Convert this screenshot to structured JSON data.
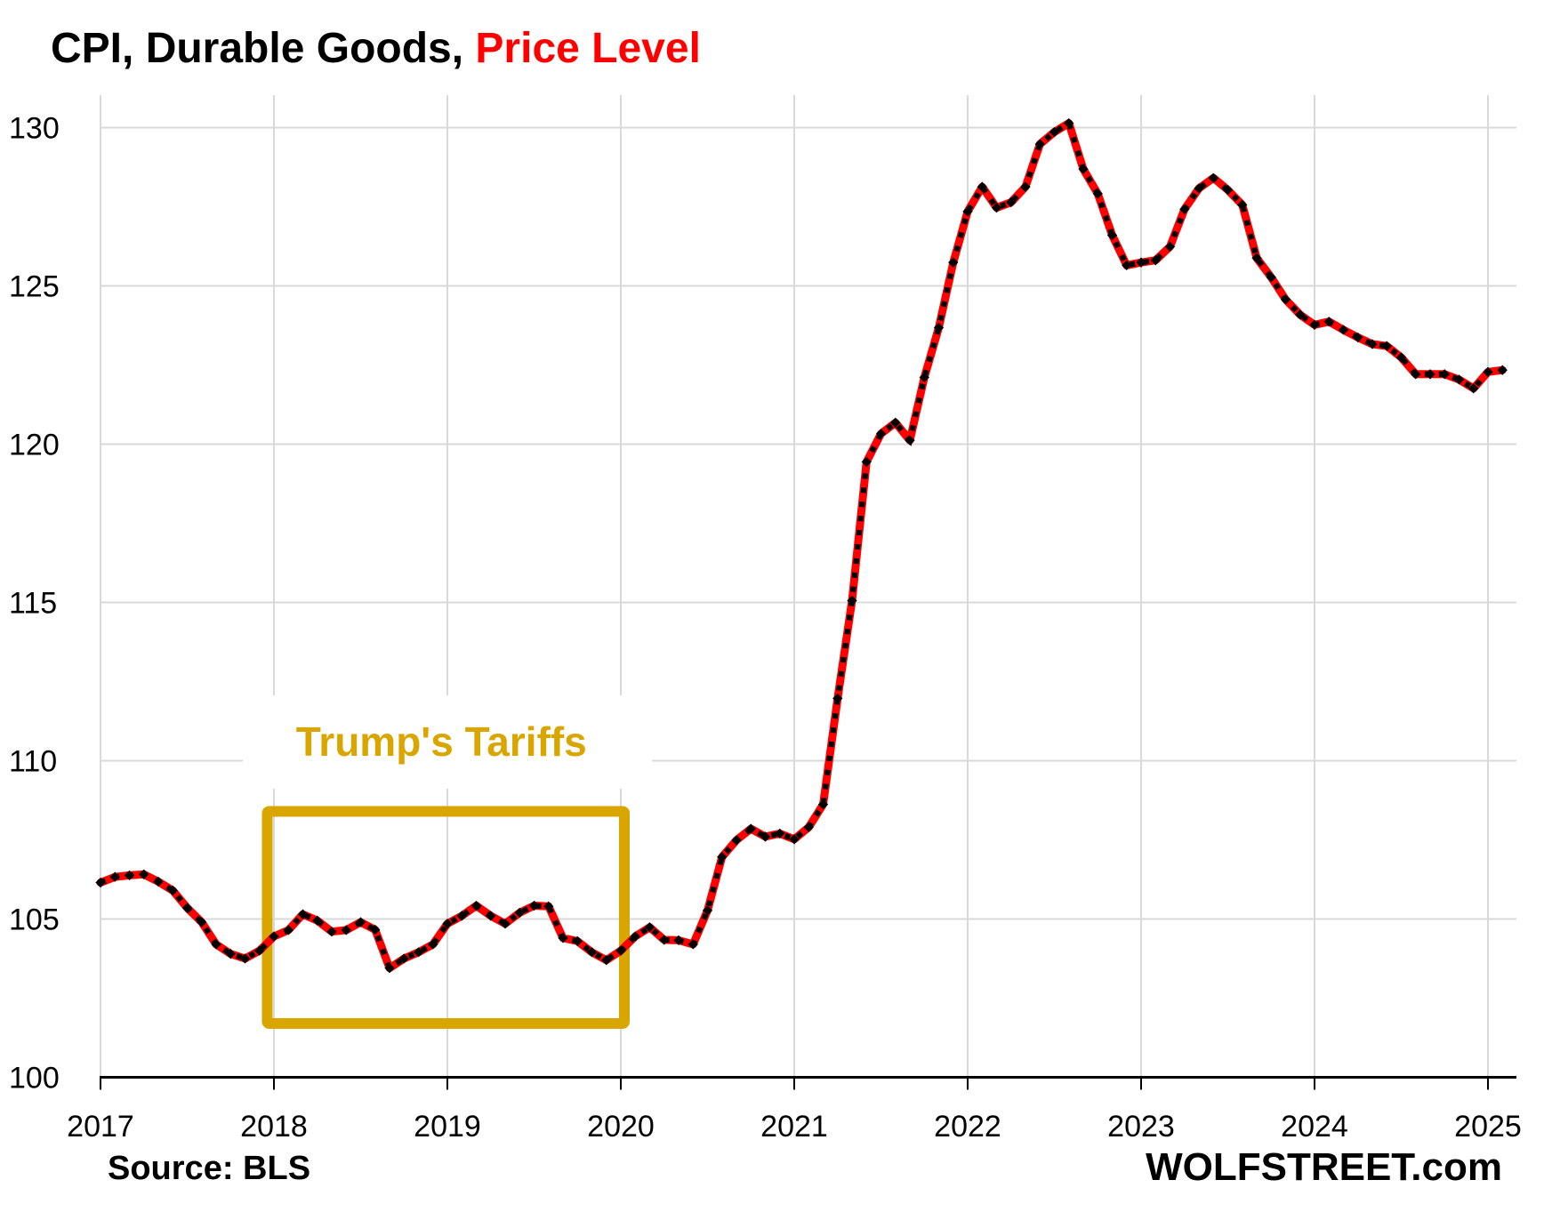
{
  "chart_data": {
    "type": "line",
    "title": "CPI, Durable Goods, ",
    "title_highlight": "Price Level",
    "xlabel": "",
    "ylabel": "",
    "ylim": [
      100,
      130
    ],
    "yticks": [
      "100",
      "105",
      "110",
      "115",
      "120",
      "125",
      "130"
    ],
    "ytick_values": [
      100,
      105,
      110,
      115,
      120,
      125,
      130
    ],
    "xticks": [
      "2017",
      "2018",
      "2019",
      "2020",
      "2021",
      "2022",
      "2023",
      "2024",
      "2025"
    ],
    "x_start": "2017-01",
    "x_frequency": "monthly",
    "grid": true,
    "series": [
      {
        "name": "CPI Durable Goods",
        "color": "#FF0000",
        "marker_color": "#000000",
        "values": [
          106.15,
          106.33,
          106.38,
          106.41,
          106.18,
          105.9,
          105.35,
          104.9,
          104.2,
          103.9,
          103.75,
          104.0,
          104.45,
          104.65,
          105.15,
          104.95,
          104.6,
          104.65,
          104.9,
          104.66,
          103.45,
          103.75,
          103.95,
          104.2,
          104.85,
          105.1,
          105.42,
          105.1,
          104.85,
          105.2,
          105.42,
          105.4,
          104.4,
          104.3,
          103.95,
          103.7,
          104.0,
          104.45,
          104.74,
          104.34,
          104.33,
          104.2,
          105.27,
          106.96,
          107.49,
          107.85,
          107.6,
          107.7,
          107.52,
          107.9,
          108.62,
          111.97,
          115.06,
          119.44,
          120.33,
          120.68,
          120.12,
          122.11,
          123.68,
          125.74,
          127.35,
          128.13,
          127.47,
          127.64,
          128.13,
          129.48,
          129.86,
          130.14,
          128.69,
          127.91,
          126.6,
          125.65,
          125.74,
          125.81,
          126.24,
          127.42,
          128.08,
          128.41,
          128.03,
          127.56,
          125.88,
          125.27,
          124.57,
          124.09,
          123.77,
          123.87,
          123.61,
          123.37,
          123.16,
          123.1,
          122.74,
          122.21,
          122.21,
          122.21,
          122.04,
          121.76,
          122.28,
          122.34
        ]
      }
    ],
    "annotations": [
      {
        "text": "Trump's Tariffs",
        "color": "#D9A600",
        "box_x_range": [
          "2018-01",
          "2020-01"
        ],
        "box_y_range": [
          101.7,
          108.4
        ]
      }
    ],
    "source": "Source: BLS",
    "brand": "WOLFSTREET.com"
  },
  "colors": {
    "title": "#000000",
    "highlight": "#FF0000",
    "grid": "#D9D9D9",
    "annotation": "#D9A600"
  }
}
